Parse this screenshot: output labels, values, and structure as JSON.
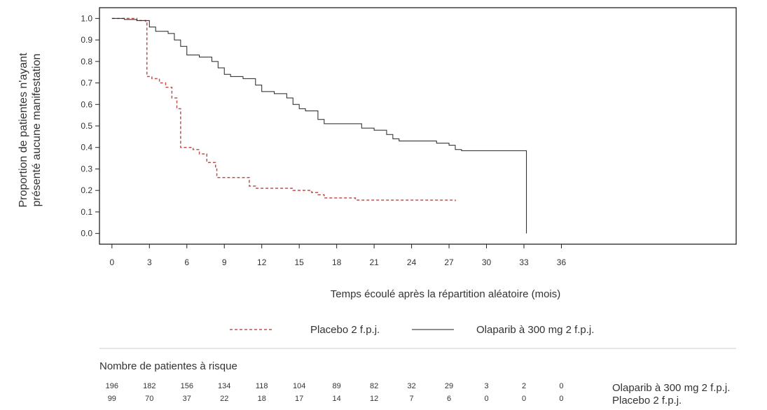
{
  "chart_data": {
    "type": "line",
    "subtype": "kaplan-meier",
    "title": "",
    "xlabel": "Temps écoulé après la répartition aléatoire (mois)",
    "ylabel_lines": [
      "Proportion de patientes n'ayant",
      "présenté aucune manifestation"
    ],
    "xlim": [
      -1,
      50
    ],
    "ylim": [
      -0.05,
      1.05
    ],
    "xticks": [
      "0",
      "3",
      "6",
      "9",
      "12",
      "15",
      "18",
      "21",
      "24",
      "27",
      "30",
      "33",
      "36"
    ],
    "yticks": [
      "0.0",
      "0.1",
      "0.2",
      "0.3",
      "0.4",
      "0.5",
      "0.6",
      "0.7",
      "0.8",
      "0.9",
      "1.0"
    ],
    "grid": false,
    "legend_position": "bottom",
    "series": [
      {
        "name": "Placebo 2 f.p.j.",
        "color": "#c0504d",
        "dash": "dashed",
        "points": [
          [
            0,
            1.0
          ],
          [
            2,
            0.99
          ],
          [
            2.7,
            0.98
          ],
          [
            2.8,
            0.73
          ],
          [
            3.2,
            0.72
          ],
          [
            3.8,
            0.7
          ],
          [
            4.3,
            0.68
          ],
          [
            4.8,
            0.63
          ],
          [
            5.2,
            0.58
          ],
          [
            5.5,
            0.4
          ],
          [
            6.5,
            0.39
          ],
          [
            7.0,
            0.37
          ],
          [
            7.6,
            0.33
          ],
          [
            8.3,
            0.3
          ],
          [
            8.4,
            0.26
          ],
          [
            10.5,
            0.26
          ],
          [
            11.0,
            0.22
          ],
          [
            11.5,
            0.21
          ],
          [
            14.5,
            0.2
          ],
          [
            16.0,
            0.19
          ],
          [
            16.5,
            0.18
          ],
          [
            17.0,
            0.165
          ],
          [
            19.5,
            0.155
          ],
          [
            27.5,
            0.15
          ]
        ]
      },
      {
        "name": "Olaparib à 300 mg 2 f.p.j.",
        "color": "#222222",
        "dash": "solid",
        "points": [
          [
            0,
            1.0
          ],
          [
            1,
            0.995
          ],
          [
            2,
            0.99
          ],
          [
            3,
            0.96
          ],
          [
            3.5,
            0.94
          ],
          [
            4.5,
            0.93
          ],
          [
            5,
            0.9
          ],
          [
            5.5,
            0.87
          ],
          [
            6,
            0.83
          ],
          [
            7,
            0.82
          ],
          [
            8,
            0.8
          ],
          [
            8.5,
            0.77
          ],
          [
            9,
            0.74
          ],
          [
            9.5,
            0.73
          ],
          [
            10.5,
            0.72
          ],
          [
            11.5,
            0.69
          ],
          [
            12,
            0.66
          ],
          [
            13,
            0.65
          ],
          [
            14,
            0.63
          ],
          [
            14.5,
            0.6
          ],
          [
            15,
            0.58
          ],
          [
            15.5,
            0.57
          ],
          [
            16.5,
            0.53
          ],
          [
            17,
            0.51
          ],
          [
            19.5,
            0.51
          ],
          [
            20,
            0.49
          ],
          [
            21,
            0.48
          ],
          [
            22,
            0.46
          ],
          [
            22.5,
            0.44
          ],
          [
            23,
            0.43
          ],
          [
            25.5,
            0.43
          ],
          [
            26,
            0.42
          ],
          [
            27,
            0.41
          ],
          [
            27.5,
            0.39
          ],
          [
            28,
            0.385
          ],
          [
            33.2,
            0.385
          ],
          [
            33.2,
            0.0
          ]
        ]
      }
    ],
    "risk_table": {
      "title": "Nombre de patientes à risque",
      "rows": [
        {
          "label": "Olaparib à 300 mg 2 f.p.j.",
          "values": [
            "196",
            "182",
            "156",
            "134",
            "118",
            "104",
            "89",
            "82",
            "32",
            "29",
            "3",
            "2",
            "0"
          ]
        },
        {
          "label": "Placebo 2 f.p.j.",
          "values": [
            "99",
            "70",
            "37",
            "22",
            "18",
            "17",
            "14",
            "12",
            "7",
            "6",
            "0",
            "0",
            "0"
          ]
        }
      ]
    }
  }
}
